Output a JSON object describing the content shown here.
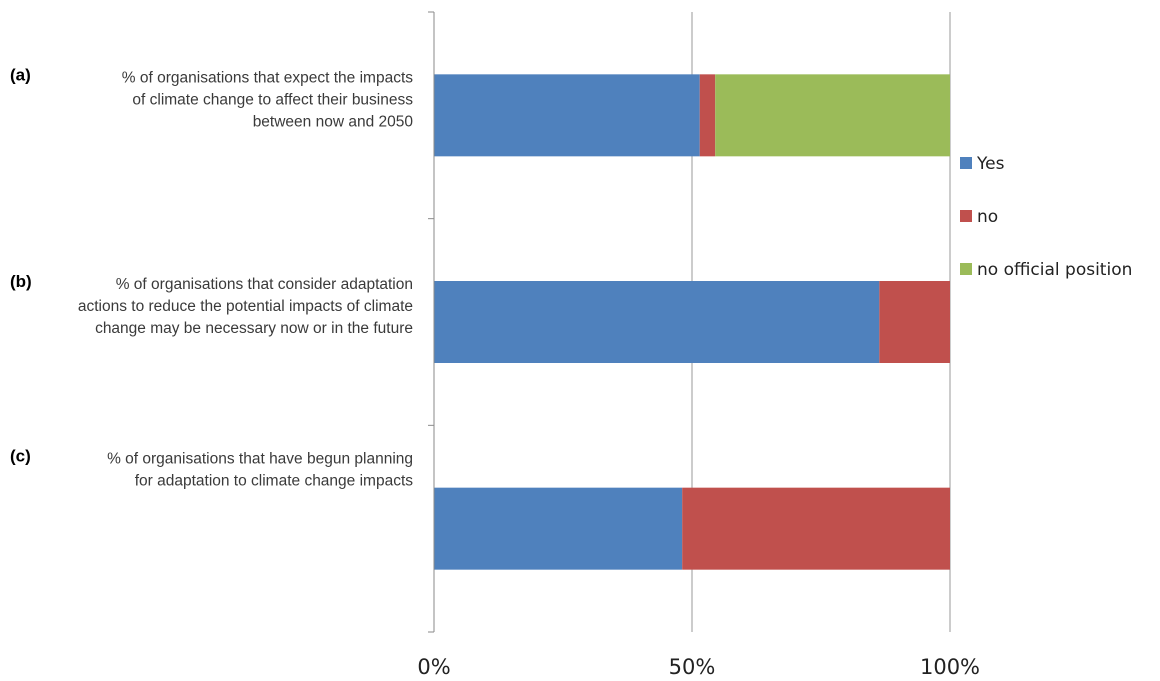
{
  "chart_data": {
    "type": "bar",
    "orientation": "horizontal",
    "stacked": true,
    "categories": [
      {
        "letter": "(a)",
        "lines": [
          "% of organisations that expect the impacts",
          "of climate change to affect their business",
          "between now and 2050"
        ]
      },
      {
        "letter": "(b)",
        "lines": [
          "% of organisations that consider adaptation",
          "actions to reduce the potential impacts of climate",
          "change may be necessary now or in the future"
        ]
      },
      {
        "letter": "(c)",
        "lines": [
          "% of organisations that have begun planning",
          "for adaptation to climate change impacts"
        ]
      }
    ],
    "series": [
      {
        "name": "Yes",
        "color": "#4F81BD",
        "values": [
          51.5,
          86.3,
          48.1
        ]
      },
      {
        "name": "no",
        "color": "#C0504D",
        "values": [
          3.0,
          13.7,
          51.9
        ]
      },
      {
        "name": "no official position",
        "color": "#9BBB59",
        "values": [
          45.5,
          0,
          0
        ]
      }
    ],
    "xlim": [
      0,
      100
    ],
    "xticks": [
      0,
      50,
      100
    ],
    "xtick_labels": [
      "0%",
      "50%",
      "100%"
    ],
    "grid": "vertical",
    "legend_position": "right"
  }
}
